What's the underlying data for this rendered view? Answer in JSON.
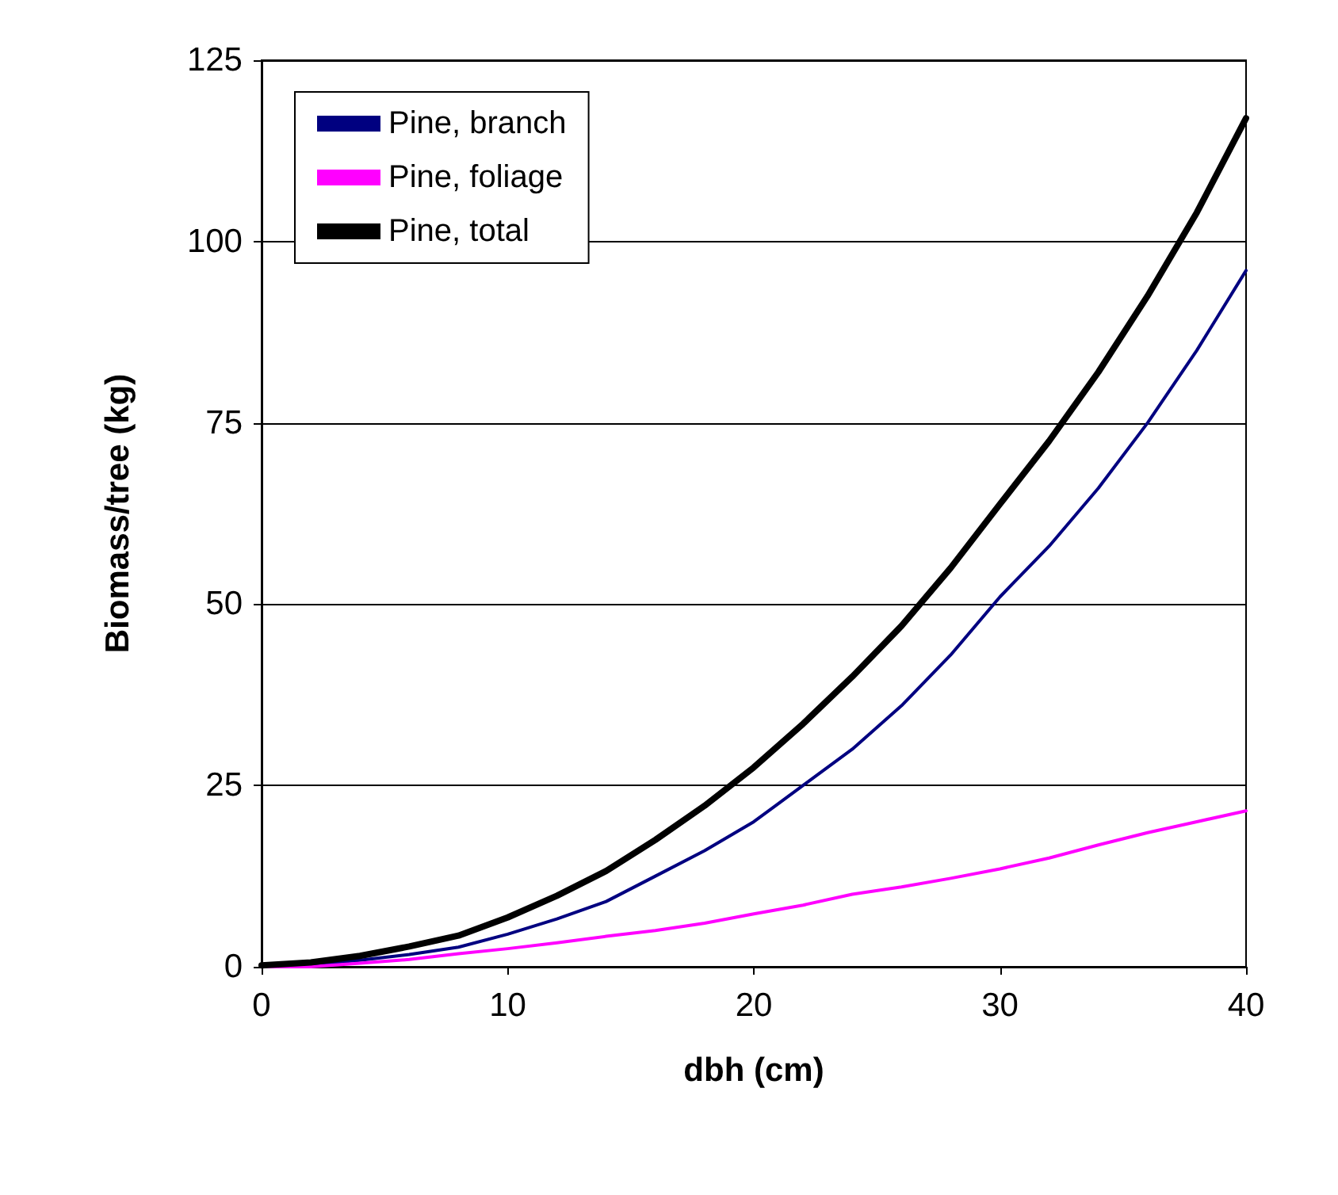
{
  "chart_data": {
    "type": "line",
    "xlabel": "dbh (cm)",
    "ylabel": "Biomass/tree (kg)",
    "x": [
      0,
      2,
      4,
      6,
      8,
      10,
      12,
      14,
      16,
      18,
      20,
      22,
      24,
      26,
      28,
      30,
      32,
      34,
      36,
      38,
      40
    ],
    "series": [
      {
        "name": "Pine, branch",
        "color": "#000080",
        "values": [
          0,
          0.3,
          0.9,
          1.7,
          2.7,
          4.5,
          6.6,
          9,
          12.5,
          16,
          20,
          25,
          30,
          36,
          43,
          51,
          58,
          66,
          75,
          85,
          96
        ]
      },
      {
        "name": "Pine, foliage",
        "color": "#ff00ff",
        "values": [
          0,
          0,
          0.5,
          1,
          1.8,
          2.5,
          3.3,
          4.2,
          5,
          6,
          7.3,
          8.5,
          10,
          11,
          12.2,
          13.5,
          15,
          16.8,
          18.5,
          20,
          21.5
        ]
      },
      {
        "name": "Pine, total",
        "color": "#000000",
        "values": [
          0.2,
          0.6,
          1.5,
          2.8,
          4.3,
          6.8,
          9.8,
          13.2,
          17.5,
          22.2,
          27.5,
          33.5,
          40,
          47,
          55,
          63.8,
          72.5,
          82,
          92.5,
          104,
          117
        ]
      }
    ],
    "xlim": [
      0,
      40
    ],
    "xticks": [
      0,
      10,
      20,
      30,
      40
    ],
    "ylim": [
      0,
      125
    ],
    "yticks": [
      0,
      25,
      50,
      75,
      100,
      125
    ],
    "grid": "y",
    "legend": "top left",
    "marker": "none",
    "line_style": "solid"
  }
}
